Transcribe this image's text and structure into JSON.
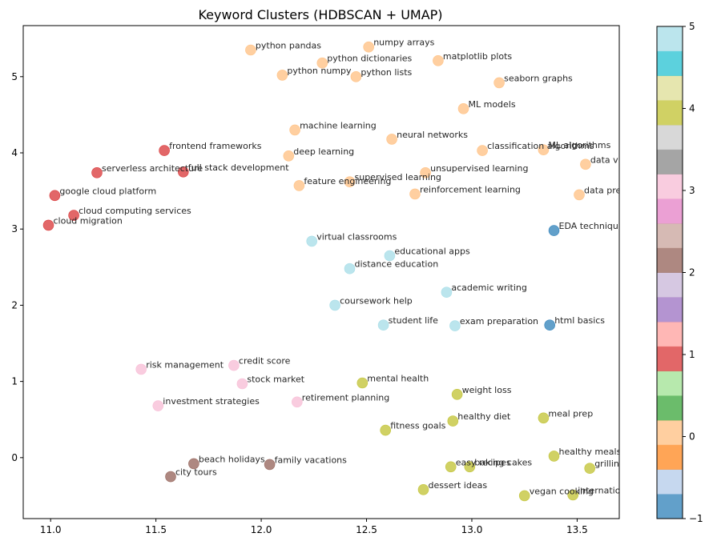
{
  "chart_data": {
    "type": "scatter",
    "title": "Keyword Clusters (HDBSCAN + UMAP)",
    "xlabel": "",
    "ylabel": "",
    "xlim": [
      10.87,
      13.7
    ],
    "ylim": [
      -0.8,
      5.67
    ],
    "xticks": [
      "11.0",
      "11.5",
      "12.0",
      "12.5",
      "13.0",
      "13.5"
    ],
    "yticks": [
      "0",
      "1",
      "2",
      "3",
      "4",
      "5"
    ],
    "grid": false,
    "colorbar": {
      "label": "",
      "range": [
        -1,
        5
      ],
      "ticks": [
        "−1",
        "0",
        "1",
        "2",
        "3",
        "4",
        "5"
      ],
      "colors": [
        "#1f77b4",
        "#aec7e8",
        "#ff7f0e",
        "#ffbb78",
        "#2ca02c",
        "#98df8a",
        "#d62728",
        "#ff9896",
        "#9467bd",
        "#c5b0d5",
        "#8c564b",
        "#c49c94",
        "#e377c2",
        "#f7b6d2",
        "#7f7f7f",
        "#c7c7c7",
        "#bcbd22",
        "#dbdb8d",
        "#17becf",
        "#9edae5"
      ]
    },
    "cluster_colors": {
      "-1": "#1f77b4",
      "0": "#ffbb78",
      "1": "#d62728",
      "2": "#8c564b",
      "3": "#f7b6d2",
      "4": "#bcbd22",
      "5": "#9edae5"
    },
    "points": [
      {
        "label": "python pandas",
        "x": 11.95,
        "y": 5.35,
        "cluster": 0
      },
      {
        "label": "numpy arrays",
        "x": 12.51,
        "y": 5.39,
        "cluster": 0
      },
      {
        "label": "python dictionaries",
        "x": 12.29,
        "y": 5.18,
        "cluster": 0
      },
      {
        "label": "matplotlib plots",
        "x": 12.84,
        "y": 5.21,
        "cluster": 0
      },
      {
        "label": "python numpy",
        "x": 12.1,
        "y": 5.02,
        "cluster": 0
      },
      {
        "label": "python lists",
        "x": 12.45,
        "y": 5.0,
        "cluster": 0
      },
      {
        "label": "seaborn graphs",
        "x": 13.13,
        "y": 4.92,
        "cluster": 0
      },
      {
        "label": "ML models",
        "x": 12.96,
        "y": 4.58,
        "cluster": 0
      },
      {
        "label": "machine learning",
        "x": 12.16,
        "y": 4.3,
        "cluster": 0
      },
      {
        "label": "neural networks",
        "x": 12.62,
        "y": 4.18,
        "cluster": 0
      },
      {
        "label": "deep learning",
        "x": 12.13,
        "y": 3.96,
        "cluster": 0
      },
      {
        "label": "classification algorithms",
        "x": 13.05,
        "y": 4.03,
        "cluster": 0
      },
      {
        "label": "ML algorithms",
        "x": 13.34,
        "y": 4.04,
        "cluster": 0
      },
      {
        "label": "data visualization",
        "x": 13.54,
        "y": 3.85,
        "cluster": 0
      },
      {
        "label": "supervised learning",
        "x": 12.42,
        "y": 3.62,
        "cluster": 0
      },
      {
        "label": "unsupervised learning",
        "x": 12.78,
        "y": 3.74,
        "cluster": 0
      },
      {
        "label": "feature engineering",
        "x": 12.18,
        "y": 3.57,
        "cluster": 0
      },
      {
        "label": "reinforcement learning",
        "x": 12.73,
        "y": 3.46,
        "cluster": 0
      },
      {
        "label": "data preprocessing",
        "x": 13.51,
        "y": 3.45,
        "cluster": 0
      },
      {
        "label": "EDA techniques",
        "x": 13.39,
        "y": 2.98,
        "cluster": -1
      },
      {
        "label": "html basics",
        "x": 13.37,
        "y": 1.74,
        "cluster": -1
      },
      {
        "label": "frontend frameworks",
        "x": 11.54,
        "y": 4.03,
        "cluster": 1
      },
      {
        "label": "serverless architecture",
        "x": 11.22,
        "y": 3.74,
        "cluster": 1
      },
      {
        "label": "full stack development",
        "x": 11.63,
        "y": 3.75,
        "cluster": 1
      },
      {
        "label": "google cloud platform",
        "x": 11.02,
        "y": 3.44,
        "cluster": 1
      },
      {
        "label": "cloud computing services",
        "x": 11.11,
        "y": 3.18,
        "cluster": 1
      },
      {
        "label": "cloud migration",
        "x": 10.99,
        "y": 3.05,
        "cluster": 1
      },
      {
        "label": "virtual classrooms",
        "x": 12.24,
        "y": 2.84,
        "cluster": 5
      },
      {
        "label": "educational apps",
        "x": 12.61,
        "y": 2.65,
        "cluster": 5
      },
      {
        "label": "distance education",
        "x": 12.42,
        "y": 2.48,
        "cluster": 5
      },
      {
        "label": "academic writing",
        "x": 12.88,
        "y": 2.17,
        "cluster": 5
      },
      {
        "label": "coursework help",
        "x": 12.35,
        "y": 2.0,
        "cluster": 5
      },
      {
        "label": "student life",
        "x": 12.58,
        "y": 1.74,
        "cluster": 5
      },
      {
        "label": "exam preparation",
        "x": 12.92,
        "y": 1.73,
        "cluster": 5
      },
      {
        "label": "risk management",
        "x": 11.43,
        "y": 1.16,
        "cluster": 3
      },
      {
        "label": "credit score",
        "x": 11.87,
        "y": 1.21,
        "cluster": 3
      },
      {
        "label": "stock market",
        "x": 11.91,
        "y": 0.97,
        "cluster": 3
      },
      {
        "label": "investment strategies",
        "x": 11.51,
        "y": 0.68,
        "cluster": 3
      },
      {
        "label": "retirement planning",
        "x": 12.17,
        "y": 0.73,
        "cluster": 3
      },
      {
        "label": "mental health",
        "x": 12.48,
        "y": 0.98,
        "cluster": 4
      },
      {
        "label": "weight loss",
        "x": 12.93,
        "y": 0.83,
        "cluster": 4
      },
      {
        "label": "healthy diet",
        "x": 12.91,
        "y": 0.48,
        "cluster": 4
      },
      {
        "label": "meal prep",
        "x": 13.34,
        "y": 0.52,
        "cluster": 4
      },
      {
        "label": "fitness goals",
        "x": 12.59,
        "y": 0.36,
        "cluster": 4
      },
      {
        "label": "healthy meals",
        "x": 13.39,
        "y": 0.02,
        "cluster": 4
      },
      {
        "label": "easy recipes",
        "x": 12.9,
        "y": -0.12,
        "cluster": 4
      },
      {
        "label": "baking cakes",
        "x": 12.99,
        "y": -0.12,
        "cluster": 4
      },
      {
        "label": "grilling techniques",
        "x": 13.56,
        "y": -0.14,
        "cluster": 4
      },
      {
        "label": "dessert ideas",
        "x": 12.77,
        "y": -0.42,
        "cluster": 4
      },
      {
        "label": "vegan cooking",
        "x": 13.25,
        "y": -0.5,
        "cluster": 4
      },
      {
        "label": "international cuisine",
        "x": 13.48,
        "y": -0.49,
        "cluster": 4
      },
      {
        "label": "beach holidays",
        "x": 11.68,
        "y": -0.08,
        "cluster": 2
      },
      {
        "label": "family vacations",
        "x": 12.04,
        "y": -0.09,
        "cluster": 2
      },
      {
        "label": "city tours",
        "x": 11.57,
        "y": -0.25,
        "cluster": 2
      }
    ]
  }
}
